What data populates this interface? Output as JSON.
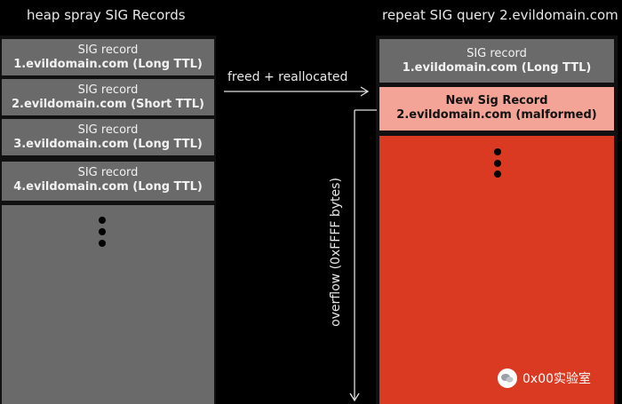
{
  "left_title": "heap spray SIG Records",
  "right_title": "repeat SIG query 2.evildomain.com",
  "left_records": [
    {
      "line1": "SIG record",
      "line2": "1.evildomain.com (Long TTL)"
    },
    {
      "line1": "SIG record",
      "line2": "2.evildomain.com (Short TTL)"
    },
    {
      "line1": "SIG record",
      "line2": "3.evildomain.com (Long TTL)"
    },
    {
      "line1": "SIG record",
      "line2": "4.evildomain.com (Long TTL)"
    }
  ],
  "right_records": [
    {
      "line1": "SIG record",
      "line2": "1.evildomain.com (Long TTL)"
    }
  ],
  "new_record": {
    "line1": "New Sig Record",
    "line2": "2.evildomain.com (malformed)"
  },
  "arrow_label": "freed + reallocated",
  "overflow_label": "overflow (0xFFFF bytes)",
  "watermark": "0x00实验室",
  "colors": {
    "record_gray": "#6a6a6a",
    "new_record": "#f3a496",
    "overflow_red": "#db3a22"
  }
}
